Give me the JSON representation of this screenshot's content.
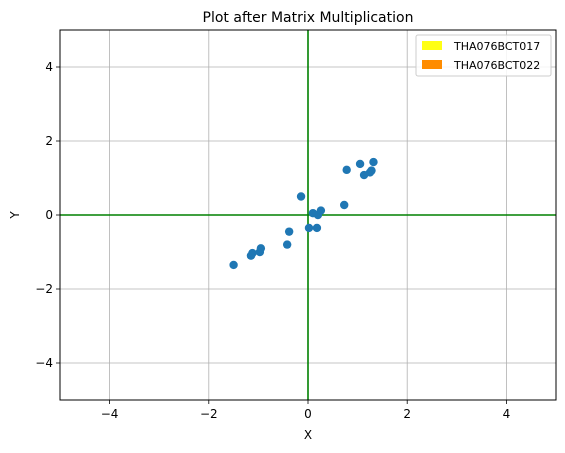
{
  "chart_data": {
    "type": "scatter",
    "title": "Plot after Matrix Multiplication",
    "xlabel": "X",
    "ylabel": "Y",
    "xlim": [
      -5,
      5
    ],
    "ylim": [
      -5,
      5
    ],
    "xticks": [
      -4,
      -2,
      0,
      2,
      4
    ],
    "yticks": [
      -4,
      -2,
      0,
      2,
      4
    ],
    "grid": true,
    "legend_position": "top-right",
    "axis_line_color": "#008000",
    "point_color": "#1f77b4",
    "legend": [
      {
        "label": "THA076BCT017",
        "color": "#ffff14"
      },
      {
        "label": "THA076BCT022",
        "color": "#ff8c00"
      }
    ],
    "points": [
      {
        "x": -1.5,
        "y": -1.35
      },
      {
        "x": -1.15,
        "y": -1.1
      },
      {
        "x": -1.12,
        "y": -1.03
      },
      {
        "x": -0.97,
        "y": -1.0
      },
      {
        "x": -0.95,
        "y": -0.9
      },
      {
        "x": -0.42,
        "y": -0.8
      },
      {
        "x": -0.38,
        "y": -0.45
      },
      {
        "x": -0.14,
        "y": 0.5
      },
      {
        "x": 0.02,
        "y": -0.35
      },
      {
        "x": 0.1,
        "y": 0.05
      },
      {
        "x": 0.18,
        "y": -0.35
      },
      {
        "x": 0.2,
        "y": 0.0
      },
      {
        "x": 0.26,
        "y": 0.12
      },
      {
        "x": 0.73,
        "y": 0.27
      },
      {
        "x": 0.78,
        "y": 1.22
      },
      {
        "x": 1.05,
        "y": 1.38
      },
      {
        "x": 1.13,
        "y": 1.08
      },
      {
        "x": 1.25,
        "y": 1.15
      },
      {
        "x": 1.28,
        "y": 1.2
      },
      {
        "x": 1.32,
        "y": 1.43
      }
    ]
  }
}
